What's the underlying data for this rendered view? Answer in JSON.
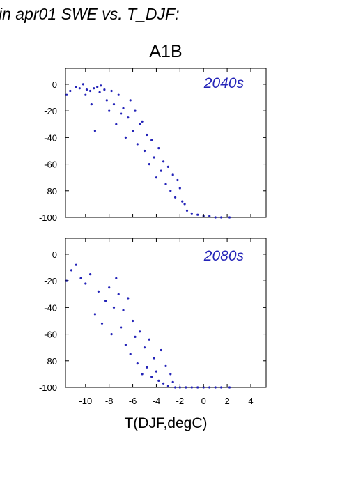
{
  "header": "in apr01 SWE vs. T_DJF:",
  "chart_data": {
    "type": "scatter",
    "title": "A1B",
    "xlabel": "T(DJF,degC)",
    "ylabel": "",
    "xlim": [
      -11.7,
      5.3
    ],
    "ylim": [
      -100,
      12
    ],
    "x_ticks": [
      "-10",
      "-8",
      "-6",
      "-4",
      "-2",
      "0",
      "2",
      "4"
    ],
    "x_tick_values": [
      -10,
      -8,
      -6,
      -4,
      -2,
      0,
      2,
      4
    ],
    "y_ticks": [
      "0",
      "-20",
      "-40",
      "-60",
      "-80",
      "-100"
    ],
    "y_tick_values": [
      0,
      -20,
      -40,
      -60,
      -80,
      -100
    ],
    "grid": false,
    "marker_color": "#2323b8",
    "panels": [
      {
        "label": "2040s",
        "points": [
          [
            -11.6,
            -8
          ],
          [
            -11.3,
            -5
          ],
          [
            -10.8,
            -2
          ],
          [
            -10.5,
            -3
          ],
          [
            -10.2,
            0
          ],
          [
            -9.9,
            -4
          ],
          [
            -9.6,
            -5
          ],
          [
            -9.3,
            -3
          ],
          [
            -9.0,
            -2
          ],
          [
            -8.7,
            -1
          ],
          [
            -10.0,
            -8
          ],
          [
            -9.5,
            -15
          ],
          [
            -9.2,
            -35
          ],
          [
            -8.8,
            -6
          ],
          [
            -8.4,
            -4
          ],
          [
            -8.2,
            -12
          ],
          [
            -8.0,
            -20
          ],
          [
            -7.8,
            -5
          ],
          [
            -7.6,
            -15
          ],
          [
            -7.4,
            -30
          ],
          [
            -7.2,
            -8
          ],
          [
            -7.0,
            -22
          ],
          [
            -6.8,
            -18
          ],
          [
            -6.6,
            -40
          ],
          [
            -6.4,
            -25
          ],
          [
            -6.2,
            -12
          ],
          [
            -6.0,
            -35
          ],
          [
            -5.8,
            -20
          ],
          [
            -5.6,
            -45
          ],
          [
            -5.4,
            -30
          ],
          [
            -5.2,
            -28
          ],
          [
            -5.0,
            -50
          ],
          [
            -4.8,
            -38
          ],
          [
            -4.6,
            -60
          ],
          [
            -4.4,
            -42
          ],
          [
            -4.2,
            -55
          ],
          [
            -4.0,
            -70
          ],
          [
            -3.8,
            -48
          ],
          [
            -3.6,
            -65
          ],
          [
            -3.4,
            -58
          ],
          [
            -3.2,
            -75
          ],
          [
            -3.0,
            -62
          ],
          [
            -2.8,
            -80
          ],
          [
            -2.6,
            -68
          ],
          [
            -2.4,
            -85
          ],
          [
            -2.2,
            -72
          ],
          [
            -2.0,
            -78
          ],
          [
            -1.8,
            -88
          ],
          [
            -1.6,
            -90
          ],
          [
            -1.4,
            -95
          ],
          [
            -1.0,
            -97
          ],
          [
            -0.5,
            -98
          ],
          [
            0.0,
            -99
          ],
          [
            0.5,
            -99
          ],
          [
            1.0,
            -100
          ],
          [
            1.5,
            -100
          ],
          [
            2.2,
            -100
          ]
        ]
      },
      {
        "label": "2080s",
        "points": [
          [
            -11.6,
            -20
          ],
          [
            -11.2,
            -12
          ],
          [
            -10.8,
            -8
          ],
          [
            -10.4,
            -18
          ],
          [
            -10.0,
            -22
          ],
          [
            -9.6,
            -15
          ],
          [
            -9.2,
            -45
          ],
          [
            -8.9,
            -28
          ],
          [
            -8.6,
            -52
          ],
          [
            -8.3,
            -35
          ],
          [
            -8.0,
            -25
          ],
          [
            -7.8,
            -60
          ],
          [
            -7.6,
            -40
          ],
          [
            -7.4,
            -18
          ],
          [
            -7.2,
            -30
          ],
          [
            -7.0,
            -55
          ],
          [
            -6.8,
            -42
          ],
          [
            -6.6,
            -68
          ],
          [
            -6.4,
            -33
          ],
          [
            -6.2,
            -75
          ],
          [
            -6.0,
            -50
          ],
          [
            -5.8,
            -62
          ],
          [
            -5.6,
            -82
          ],
          [
            -5.4,
            -58
          ],
          [
            -5.2,
            -90
          ],
          [
            -5.0,
            -70
          ],
          [
            -4.8,
            -85
          ],
          [
            -4.6,
            -64
          ],
          [
            -4.4,
            -92
          ],
          [
            -4.2,
            -78
          ],
          [
            -4.0,
            -88
          ],
          [
            -3.8,
            -95
          ],
          [
            -3.6,
            -72
          ],
          [
            -3.4,
            -97
          ],
          [
            -3.2,
            -84
          ],
          [
            -3.0,
            -99
          ],
          [
            -2.8,
            -90
          ],
          [
            -2.6,
            -96
          ],
          [
            -2.4,
            -100
          ],
          [
            -2.0,
            -100
          ],
          [
            -1.5,
            -100
          ],
          [
            -1.0,
            -100
          ],
          [
            -0.5,
            -100
          ],
          [
            0.0,
            -100
          ],
          [
            0.5,
            -100
          ],
          [
            1.0,
            -100
          ],
          [
            1.5,
            -100
          ],
          [
            2.2,
            -100
          ]
        ]
      }
    ]
  }
}
